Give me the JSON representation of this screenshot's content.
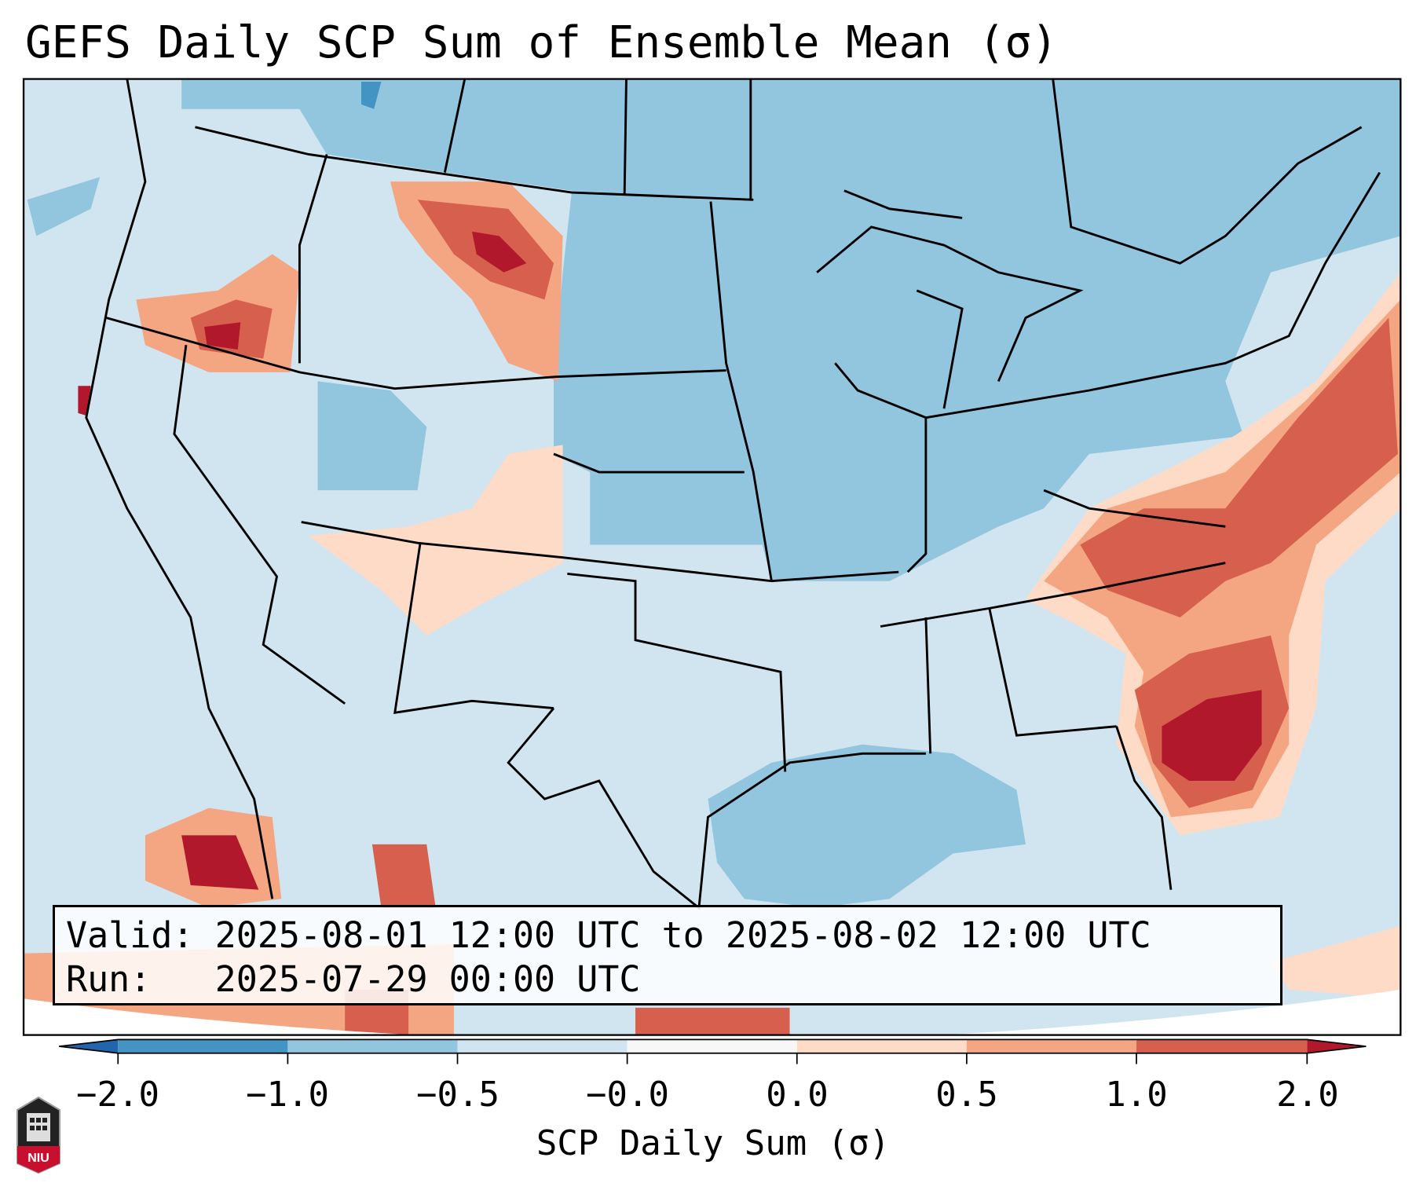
{
  "title": "GEFS Daily SCP Sum of Ensemble Mean (σ)",
  "legend": {
    "valid_line": "Valid: 2025-08-01 12:00 UTC to 2025-08-02 12:00 UTC",
    "run_line": "Run:   2025-07-29 00:00 UTC"
  },
  "colorbar": {
    "label": "SCP Daily Sum (σ)",
    "ticks": [
      "−2.0",
      "−1.0",
      "−0.5",
      "−0.0",
      "0.0",
      "0.5",
      "1.0",
      "2.0"
    ],
    "colors": [
      "#4393c3",
      "#92c5de",
      "#d1e5f0",
      "#f7f7f7",
      "#fddbc7",
      "#f4a582",
      "#d6604d"
    ],
    "under_color": "#2166ac",
    "over_color": "#b2182b"
  },
  "logo": {
    "text": "NIU"
  }
}
